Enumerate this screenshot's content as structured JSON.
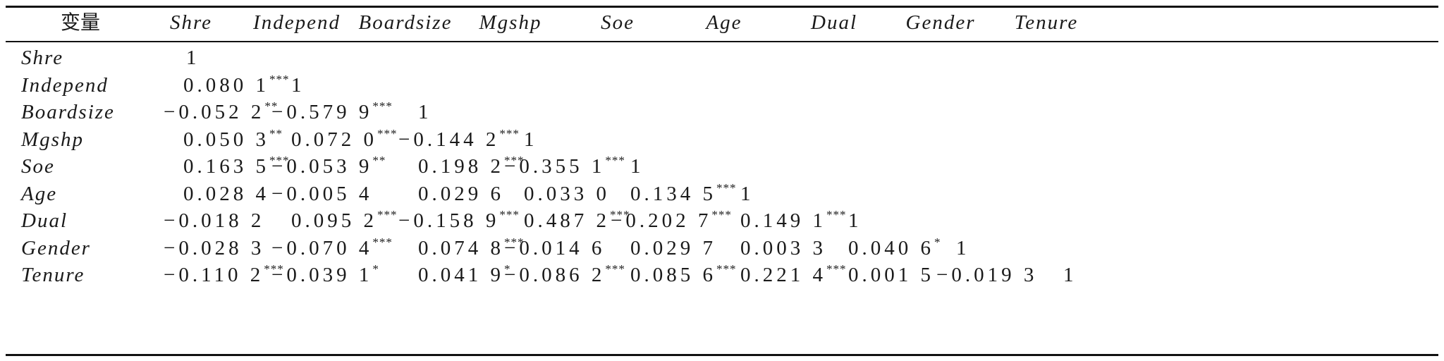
{
  "table": {
    "corner_label": "变量",
    "columns": [
      "Shre",
      "Independ",
      "Boardsize",
      "Mgshp",
      "Soe",
      "Age",
      "Dual",
      "Gender",
      "Tenure"
    ],
    "rows": [
      {
        "label": "Shre",
        "cells": [
          "1"
        ]
      },
      {
        "label": "Independ",
        "cells": [
          "0.080 1***",
          "1"
        ]
      },
      {
        "label": "Boardsize",
        "cells": [
          "−0.052 2**",
          "−0.579 9***",
          "1"
        ]
      },
      {
        "label": "Mgshp",
        "cells": [
          "0.050 3**",
          "0.072 0***",
          "−0.144 2***",
          "1"
        ]
      },
      {
        "label": "Soe",
        "cells": [
          "0.163 5***",
          "−0.053 9**",
          "0.198 2***",
          "−0.355 1***",
          "1"
        ]
      },
      {
        "label": "Age",
        "cells": [
          "0.028 4",
          "−0.005 4",
          "0.029 6",
          "0.033 0",
          "0.134 5***",
          "1"
        ]
      },
      {
        "label": "Dual",
        "cells": [
          "−0.018 2",
          "0.095 2***",
          "−0.158 9***",
          "0.487 2***",
          "−0.202 7***",
          "0.149 1***",
          "1"
        ]
      },
      {
        "label": "Gender",
        "cells": [
          "−0.028 3",
          "−0.070 4***",
          "0.074 8***",
          "−0.014 6",
          "0.029 7",
          "0.003 3",
          "0.040 6*",
          "1"
        ]
      },
      {
        "label": "Tenure",
        "cells": [
          "−0.110 2***",
          "−0.039 1*",
          "0.041 9*",
          "−0.086 2***",
          "0.085 6***",
          "0.221 4***",
          "0.001 5",
          "−0.019 3",
          "1"
        ]
      }
    ]
  }
}
